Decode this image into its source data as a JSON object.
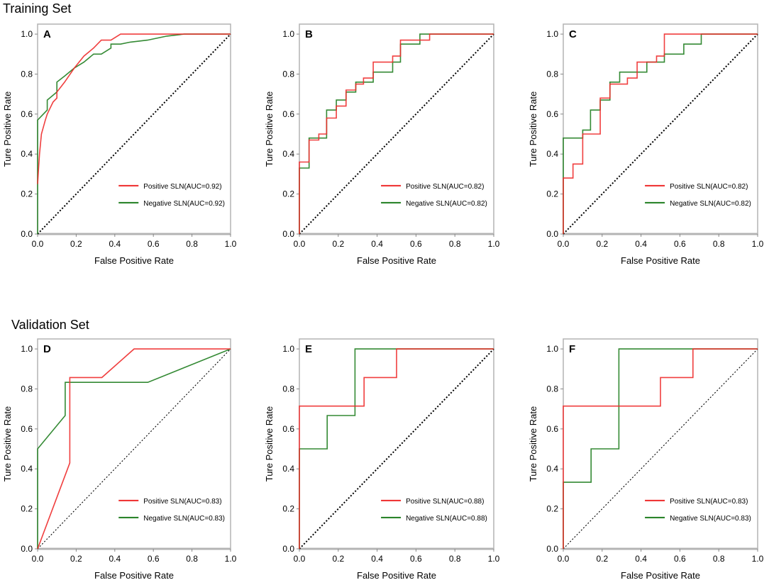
{
  "sections": {
    "training_title": "Training Set",
    "validation_title": "Validation Set"
  },
  "colors": {
    "positive": "#ee2a2a",
    "negative": "#1e7d1e",
    "frame": "#b4b4b4",
    "diagonal": "#000000"
  },
  "chart_data": [
    {
      "type": "line",
      "panel": "A",
      "xlabel": "False Positive Rate",
      "ylabel": "Ture Positive Rate",
      "xlim": [
        0,
        1
      ],
      "ylim": [
        0,
        1.05
      ],
      "xticks": [
        "0.0",
        "0.2",
        "0.4",
        "0.6",
        "0.8",
        "1.0"
      ],
      "yticks": [
        "0.0",
        "0.2",
        "0.4",
        "0.6",
        "0.8",
        "1.0"
      ],
      "series": [
        {
          "name": "Positive SLN(AUC=0.92)",
          "legend": "Positive SLN(AUC=0.92)",
          "x": [
            0,
            0.005,
            0.01,
            0.02,
            0.04,
            0.05,
            0.06,
            0.08,
            0.1,
            0.1,
            0.14,
            0.19,
            0.24,
            0.29,
            0.33,
            0.38,
            0.43,
            0.48,
            0.57,
            0.67,
            0.76,
            1.0
          ],
          "y": [
            0.25,
            0.33,
            0.4,
            0.5,
            0.57,
            0.6,
            0.62,
            0.66,
            0.68,
            0.71,
            0.76,
            0.83,
            0.89,
            0.93,
            0.97,
            0.97,
            1.0,
            1.0,
            1.0,
            1.0,
            1.0,
            1.0
          ]
        },
        {
          "name": "Negative SLN(AUC=0.92)",
          "legend": "Negative SLN(AUC=0.92)",
          "x": [
            0,
            0,
            0.05,
            0.05,
            0.1,
            0.1,
            0.14,
            0.19,
            0.24,
            0.29,
            0.33,
            0.38,
            0.38,
            0.43,
            0.48,
            0.57,
            0.67,
            0.76,
            0.86,
            1.0
          ],
          "y": [
            0.0,
            0.57,
            0.62,
            0.67,
            0.71,
            0.76,
            0.79,
            0.83,
            0.86,
            0.9,
            0.9,
            0.93,
            0.95,
            0.95,
            0.96,
            0.97,
            0.99,
            1.0,
            1.0,
            1.0
          ]
        }
      ]
    },
    {
      "type": "line",
      "panel": "B",
      "xlabel": "False Positive Rate",
      "ylabel": "Ture Positive Rate",
      "xlim": [
        0,
        1
      ],
      "ylim": [
        0,
        1.05
      ],
      "xticks": [
        "0.0",
        "0.2",
        "0.4",
        "0.6",
        "0.8",
        "1.0"
      ],
      "yticks": [
        "0.0",
        "0.2",
        "0.4",
        "0.6",
        "0.8",
        "1.0"
      ],
      "series": [
        {
          "name": "Positive SLN(AUC=0.82)",
          "legend": "Positive SLN(AUC=0.82)",
          "x": [
            0,
            0,
            0.05,
            0.05,
            0.1,
            0.1,
            0.14,
            0.14,
            0.19,
            0.19,
            0.24,
            0.24,
            0.29,
            0.29,
            0.33,
            0.33,
            0.38,
            0.38,
            0.43,
            0.43,
            0.48,
            0.48,
            0.52,
            0.52,
            0.57,
            0.57,
            0.67,
            0.67,
            1.0
          ],
          "y": [
            0,
            0.36,
            0.36,
            0.47,
            0.47,
            0.5,
            0.5,
            0.58,
            0.58,
            0.64,
            0.64,
            0.72,
            0.72,
            0.75,
            0.75,
            0.78,
            0.78,
            0.86,
            0.86,
            0.86,
            0.86,
            0.89,
            0.89,
            0.97,
            0.97,
            0.97,
            0.97,
            1.0,
            1.0
          ]
        },
        {
          "name": "Negative SLN(AUC=0.82)",
          "legend": "Negative SLN(AUC=0.82)",
          "x": [
            0,
            0,
            0.05,
            0.05,
            0.14,
            0.14,
            0.19,
            0.19,
            0.24,
            0.24,
            0.29,
            0.29,
            0.33,
            0.33,
            0.38,
            0.38,
            0.48,
            0.48,
            0.52,
            0.52,
            0.62,
            0.62,
            0.67,
            1.0
          ],
          "y": [
            0,
            0.33,
            0.33,
            0.48,
            0.48,
            0.62,
            0.62,
            0.67,
            0.67,
            0.71,
            0.71,
            0.76,
            0.76,
            0.76,
            0.76,
            0.81,
            0.81,
            0.86,
            0.86,
            0.95,
            0.95,
            1.0,
            1.0,
            1.0
          ]
        }
      ]
    },
    {
      "type": "line",
      "panel": "C",
      "xlabel": "False Positive Rate",
      "ylabel": "Ture Positive Rate",
      "xlim": [
        0,
        1
      ],
      "ylim": [
        0,
        1.05
      ],
      "xticks": [
        "0.0",
        "0.2",
        "0.4",
        "0.6",
        "0.8",
        "1.0"
      ],
      "yticks": [
        "0.0",
        "0.2",
        "0.4",
        "0.6",
        "0.8",
        "1.0"
      ],
      "series": [
        {
          "name": "Positive SLN(AUC=0.82)",
          "legend": "Positive SLN(AUC=0.82)",
          "x": [
            0,
            0,
            0.05,
            0.05,
            0.1,
            0.1,
            0.19,
            0.19,
            0.24,
            0.24,
            0.33,
            0.33,
            0.38,
            0.38,
            0.48,
            0.48,
            0.52,
            0.52,
            1.0
          ],
          "y": [
            0,
            0.28,
            0.28,
            0.35,
            0.35,
            0.5,
            0.5,
            0.68,
            0.68,
            0.75,
            0.75,
            0.78,
            0.78,
            0.86,
            0.86,
            0.89,
            0.89,
            1.0,
            1.0
          ]
        },
        {
          "name": "Negative SLN(AUC=0.82)",
          "legend": "Negative SLN(AUC=0.82)",
          "x": [
            0,
            0,
            0.1,
            0.1,
            0.14,
            0.14,
            0.19,
            0.19,
            0.24,
            0.24,
            0.29,
            0.29,
            0.33,
            0.33,
            0.43,
            0.43,
            0.52,
            0.52,
            0.62,
            0.62,
            0.71,
            0.71,
            1.0
          ],
          "y": [
            0,
            0.48,
            0.48,
            0.52,
            0.52,
            0.62,
            0.62,
            0.67,
            0.67,
            0.76,
            0.76,
            0.81,
            0.81,
            0.81,
            0.81,
            0.86,
            0.86,
            0.9,
            0.9,
            0.95,
            0.95,
            1.0,
            1.0
          ]
        }
      ]
    },
    {
      "type": "line",
      "panel": "D",
      "xlabel": "False Positive Rate",
      "ylabel": "Ture Positive Rate",
      "xlim": [
        0,
        1
      ],
      "ylim": [
        0,
        1.05
      ],
      "xticks": [
        "0.0",
        "0.2",
        "0.4",
        "0.6",
        "0.8",
        "1.0"
      ],
      "yticks": [
        "0.0",
        "0.2",
        "0.4",
        "0.6",
        "0.8",
        "1.0"
      ],
      "series": [
        {
          "name": "Positive SLN(AUC=0.83)",
          "legend": "Positive SLN(AUC=0.83)",
          "x": [
            0,
            0.167,
            0.167,
            0.333,
            0.5,
            1.0
          ],
          "y": [
            0,
            0.43,
            0.857,
            0.857,
            1.0,
            1.0
          ]
        },
        {
          "name": "Negative SLN(AUC=0.83)",
          "legend": "Negative SLN(AUC=0.83)",
          "x": [
            0,
            0,
            0.143,
            0.143,
            0.571,
            1.0
          ],
          "y": [
            0,
            0.5,
            0.667,
            0.833,
            0.833,
            1.0
          ]
        }
      ]
    },
    {
      "type": "line",
      "panel": "E",
      "xlabel": "False Positive Rate",
      "ylabel": "Ture Positive Rate",
      "xlim": [
        0,
        1
      ],
      "ylim": [
        0,
        1.05
      ],
      "xticks": [
        "0.0",
        "0.2",
        "0.4",
        "0.6",
        "0.8",
        "1.0"
      ],
      "yticks": [
        "0.0",
        "0.2",
        "0.4",
        "0.6",
        "0.8",
        "1.0"
      ],
      "series": [
        {
          "name": "Positive SLN(AUC=0.88)",
          "legend": "Positive SLN(AUC=0.88)",
          "x": [
            0,
            0,
            0.333,
            0.333,
            0.5,
            0.5,
            1.0
          ],
          "y": [
            0,
            0.714,
            0.714,
            0.857,
            0.857,
            1.0,
            1.0
          ]
        },
        {
          "name": "Negative SLN(AUC=0.88)",
          "legend": "Negative SLN(AUC=0.88)",
          "x": [
            0,
            0,
            0.143,
            0.143,
            0.286,
            0.286,
            1.0
          ],
          "y": [
            0,
            0.5,
            0.5,
            0.667,
            0.667,
            1.0,
            1.0
          ]
        }
      ]
    },
    {
      "type": "line",
      "panel": "F",
      "xlabel": "False Positive Rate",
      "ylabel": "Ture Positive Rate",
      "xlim": [
        0,
        1
      ],
      "ylim": [
        0,
        1.05
      ],
      "xticks": [
        "0.0",
        "0.2",
        "0.4",
        "0.6",
        "0.8",
        "1.0"
      ],
      "yticks": [
        "0.0",
        "0.2",
        "0.4",
        "0.6",
        "0.8",
        "1.0"
      ],
      "series": [
        {
          "name": "Positive SLN(AUC=0.83)",
          "legend": "Positive SLN(AUC=0.83)",
          "x": [
            0,
            0,
            0.5,
            0.5,
            0.667,
            0.667,
            1.0
          ],
          "y": [
            0,
            0.714,
            0.714,
            0.857,
            0.857,
            1.0,
            1.0
          ]
        },
        {
          "name": "Negative SLN(AUC=0.83)",
          "legend": "Negative SLN(AUC=0.83)",
          "x": [
            0,
            0,
            0.143,
            0.143,
            0.286,
            0.286,
            1.0
          ],
          "y": [
            0,
            0.333,
            0.333,
            0.5,
            0.5,
            1.0,
            1.0
          ]
        }
      ]
    }
  ]
}
